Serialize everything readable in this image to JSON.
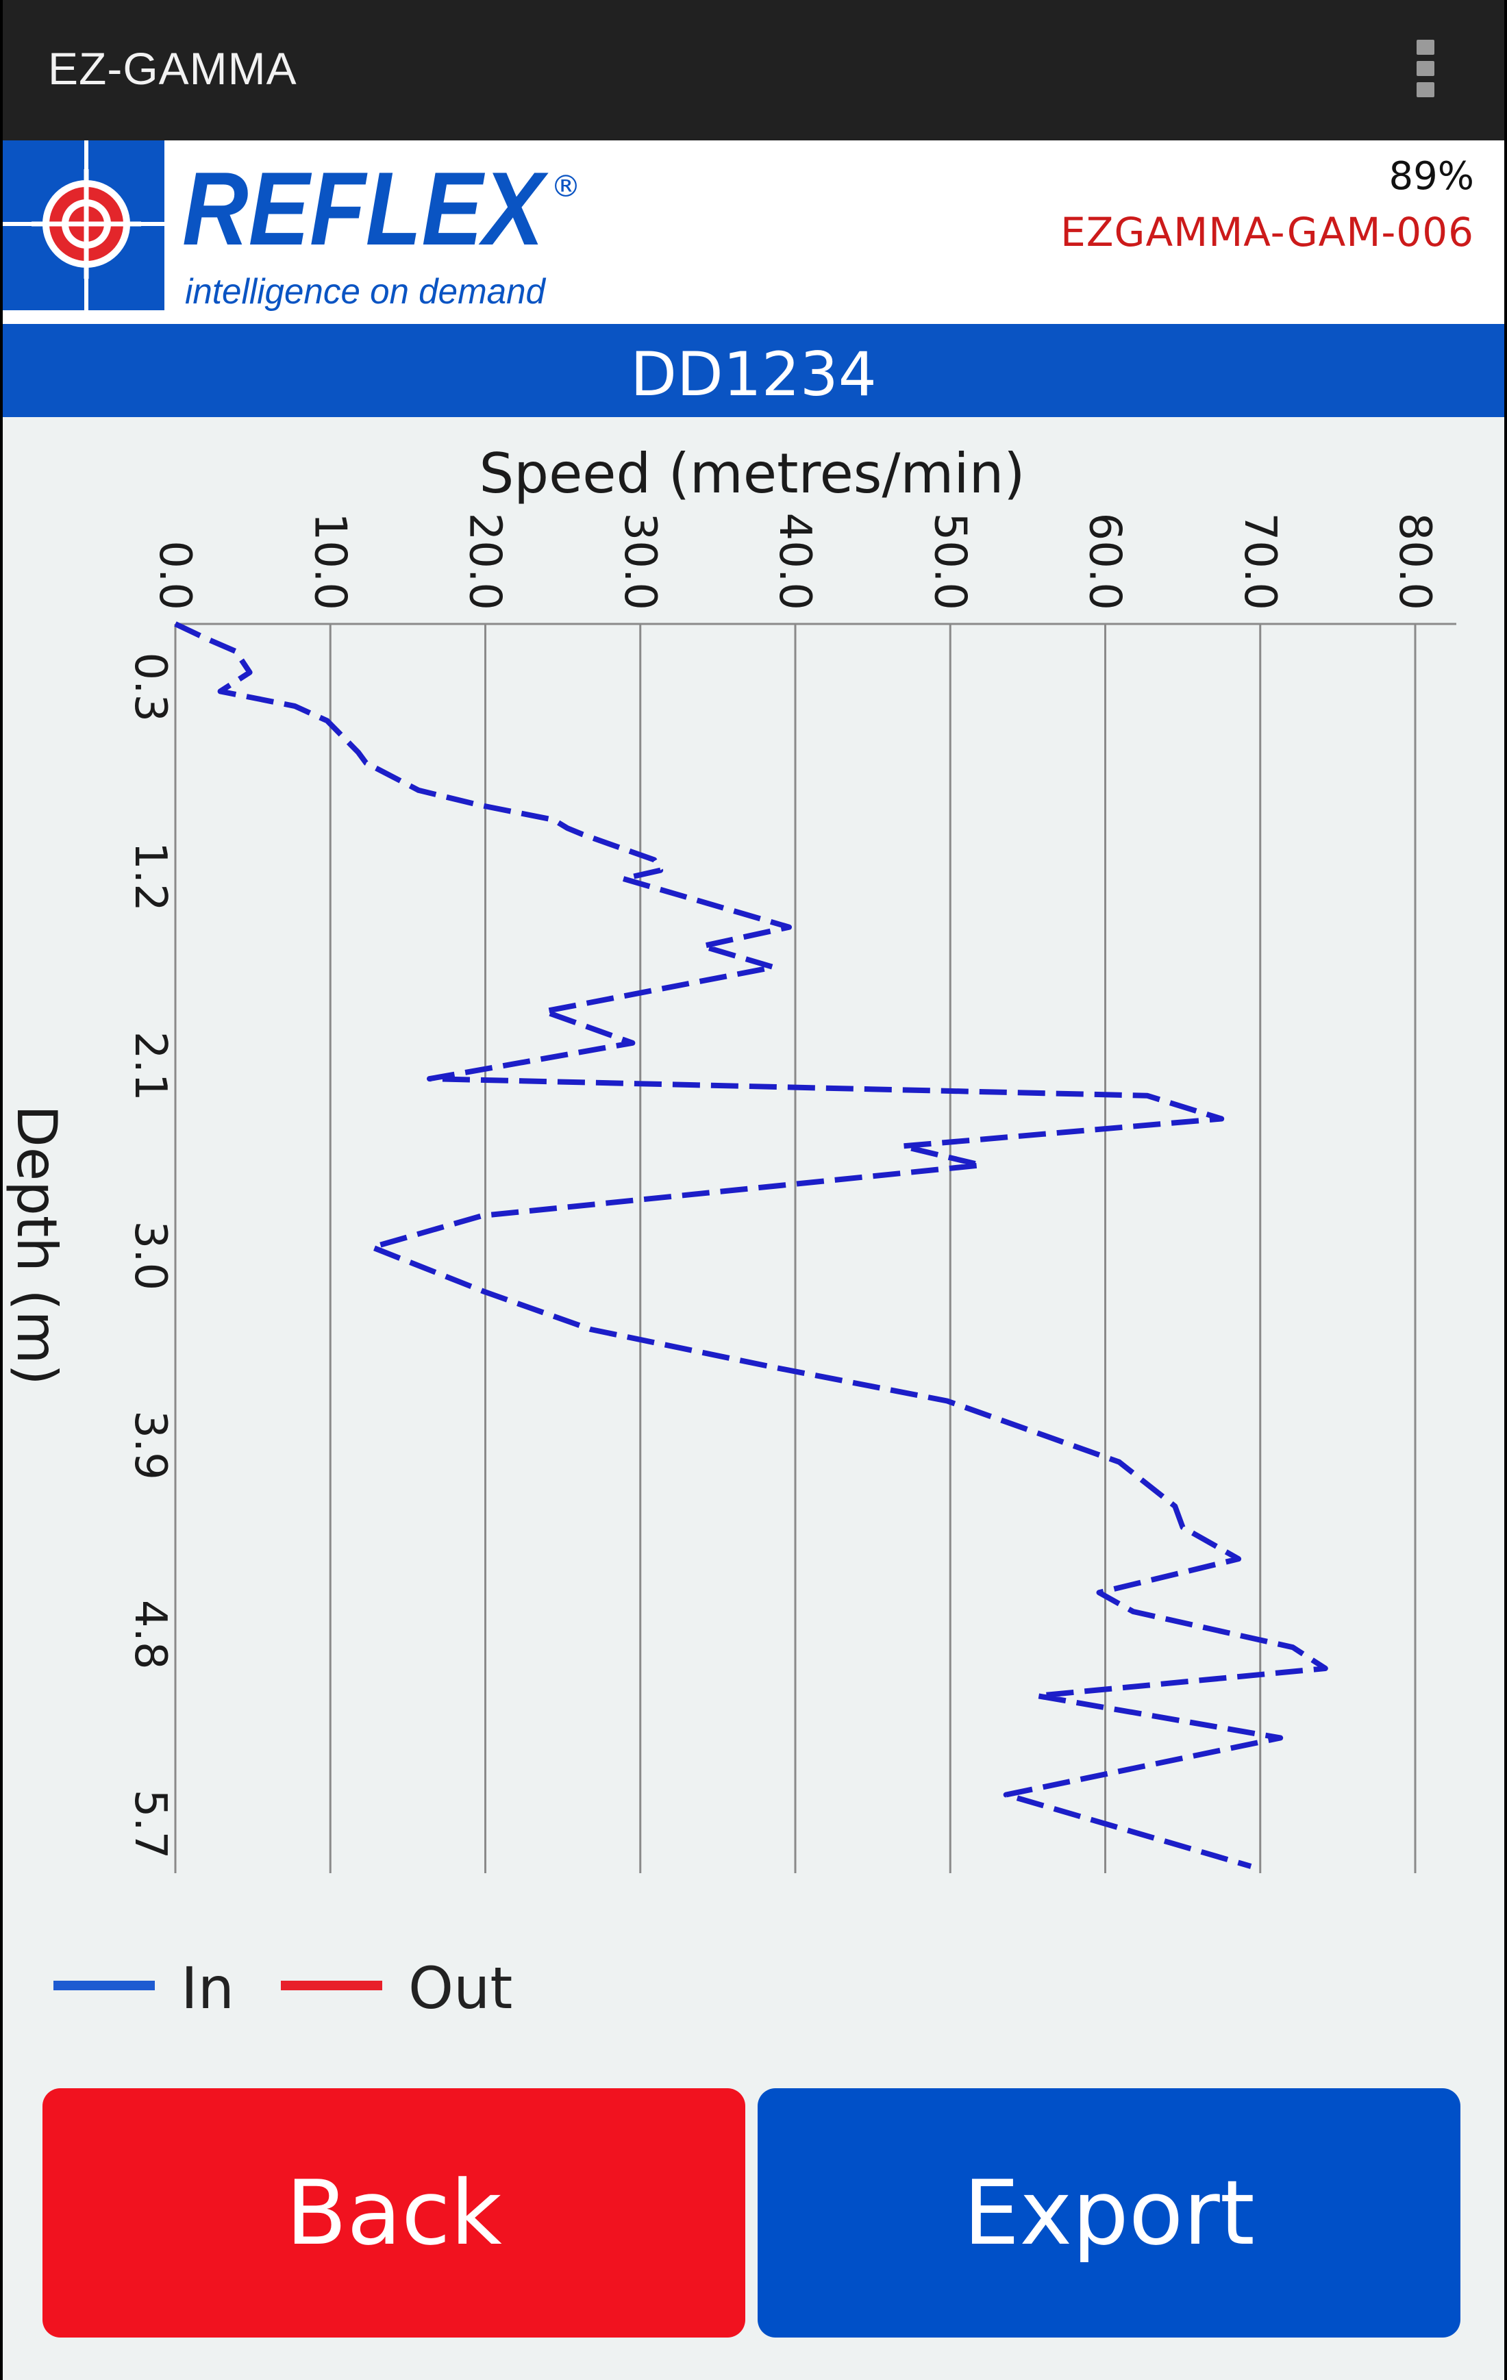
{
  "app_bar": {
    "title": "EZ-GAMMA",
    "menu_icon": "overflow-menu-icon"
  },
  "header": {
    "logo": {
      "brand": "REFLEX",
      "registered": "®",
      "tagline": "intelligence on demand",
      "icon": "crosshair-icon"
    },
    "battery": "89%",
    "device_id": "EZGAMMA-GAM-006"
  },
  "hole": {
    "id": "DD1234"
  },
  "chart_data": {
    "type": "line",
    "orientation": "depth-down, speed-across",
    "xlabel": "Speed (metres/min)",
    "ylabel": "Depth (m)",
    "x_ticks": [
      "0.0",
      "10.0",
      "20.0",
      "30.0",
      "40.0",
      "50.0",
      "60.0",
      "70.0",
      "80.0"
    ],
    "xlim": [
      0,
      80
    ],
    "y_ticks": [
      "0.3",
      "1.2",
      "2.1",
      "3.0",
      "3.9",
      "4.8",
      "5.7"
    ],
    "ylim": [
      0.0,
      5.9
    ],
    "grid": "vertical",
    "legend": "bottom-left",
    "series": [
      {
        "name": "In",
        "color": "#1c1ec8",
        "legend_color": "#1e5bd1",
        "dashed": true,
        "points": [
          [
            0.0,
            0.0
          ],
          [
            2.0,
            0.07
          ],
          [
            3.9,
            0.13
          ],
          [
            4.8,
            0.23
          ],
          [
            2.9,
            0.32
          ],
          [
            7.7,
            0.39
          ],
          [
            9.8,
            0.46
          ],
          [
            11.8,
            0.61
          ],
          [
            12.3,
            0.66
          ],
          [
            15.7,
            0.79
          ],
          [
            19.6,
            0.86
          ],
          [
            24.4,
            0.93
          ],
          [
            25.3,
            0.97
          ],
          [
            26.3,
            1.0
          ],
          [
            30.9,
            1.12
          ],
          [
            31.3,
            1.17
          ],
          [
            28.9,
            1.21
          ],
          [
            39.6,
            1.44
          ],
          [
            34.0,
            1.53
          ],
          [
            38.6,
            1.63
          ],
          [
            23.8,
            1.84
          ],
          [
            29.5,
            1.99
          ],
          [
            16.4,
            2.16
          ],
          [
            62.7,
            2.24
          ],
          [
            67.5,
            2.35
          ],
          [
            46.9,
            2.48
          ],
          [
            52.0,
            2.57
          ],
          [
            19.8,
            2.81
          ],
          [
            12.7,
            2.96
          ],
          [
            19.9,
            3.17
          ],
          [
            26.8,
            3.35
          ],
          [
            38.6,
            3.53
          ],
          [
            49.8,
            3.69
          ],
          [
            60.9,
            3.98
          ],
          [
            64.5,
            4.19
          ],
          [
            65.0,
            4.29
          ],
          [
            68.6,
            4.44
          ],
          [
            59.6,
            4.6
          ],
          [
            61.8,
            4.69
          ],
          [
            72.1,
            4.86
          ],
          [
            74.2,
            4.96
          ],
          [
            55.6,
            5.09
          ],
          [
            71.3,
            5.29
          ],
          [
            53.6,
            5.56
          ],
          [
            69.4,
            5.9
          ]
        ]
      },
      {
        "name": "Out",
        "color": "#e8202a",
        "points": []
      }
    ]
  },
  "buttons": {
    "back": "Back",
    "export": "Export"
  }
}
